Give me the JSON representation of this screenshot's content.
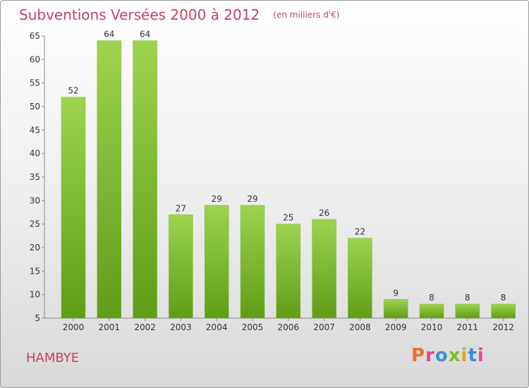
{
  "header": {
    "title": "Subventions Versées 2000 à 2012",
    "unit": "(en milliers d'€)"
  },
  "footer": {
    "commune": "HAMBYE",
    "logo_text": "Proxiti"
  },
  "colors": {
    "title": "#c0455e",
    "bar_top": "#9dd44f",
    "bar_bottom": "#5f9c17",
    "logo": [
      "#e8702a",
      "#e84393",
      "#3a8fd9",
      "#7bbf2f",
      "#e8a020",
      "#3a8fd9",
      "#e84393"
    ]
  },
  "chart_data": {
    "type": "bar",
    "title": "Subventions Versées 2000 à 2012",
    "subtitle": "(en milliers d'€)",
    "categories": [
      "2000",
      "2001",
      "2002",
      "2003",
      "2004",
      "2005",
      "2006",
      "2007",
      "2008",
      "2009",
      "2010",
      "2011",
      "2012"
    ],
    "values": [
      52,
      64,
      64,
      27,
      29,
      29,
      25,
      26,
      22,
      9,
      8,
      8,
      8
    ],
    "ylim": [
      5,
      65
    ],
    "yticks": [
      5,
      10,
      15,
      20,
      25,
      30,
      35,
      40,
      45,
      50,
      55,
      60,
      65
    ],
    "grid": false,
    "legend": "none"
  }
}
